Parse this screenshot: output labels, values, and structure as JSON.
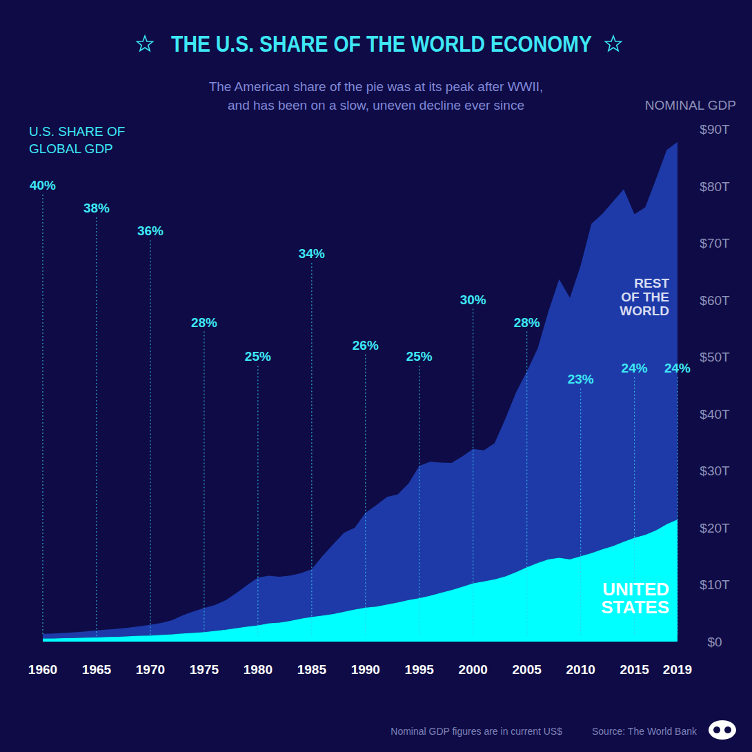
{
  "chart_data": {
    "type": "area",
    "title": "THE U.S. SHARE OF THE WORLD ECONOMY",
    "subtitle": [
      "The American share of the pie was at its peak after WWII,",
      "and has been on a slow, uneven decline ever since"
    ],
    "y_label": "NOMINAL GDP",
    "share_label": [
      "U.S. SHARE OF",
      "GLOBAL GDP"
    ],
    "note": "Nominal GDP figures are in current US$",
    "source": "Source: The World Bank",
    "stacked": true,
    "grid": false,
    "x": [
      1960,
      1961,
      1962,
      1963,
      1964,
      1965,
      1966,
      1967,
      1968,
      1969,
      1970,
      1971,
      1972,
      1973,
      1974,
      1975,
      1976,
      1977,
      1978,
      1979,
      1980,
      1981,
      1982,
      1983,
      1984,
      1985,
      1986,
      1987,
      1988,
      1989,
      1990,
      1991,
      1992,
      1993,
      1994,
      1995,
      1996,
      1997,
      1998,
      1999,
      2000,
      2001,
      2002,
      2003,
      2004,
      2005,
      2006,
      2007,
      2008,
      2009,
      2010,
      2011,
      2012,
      2013,
      2014,
      2015,
      2016,
      2017,
      2018,
      2019
    ],
    "xlim": [
      1960,
      2019
    ],
    "xticks": [
      1960,
      1965,
      1970,
      1975,
      1980,
      1985,
      1990,
      1995,
      2000,
      2005,
      2010,
      2015,
      2019
    ],
    "ylim": [
      0,
      90
    ],
    "yticks": [
      {
        "value": 0,
        "label": "$0"
      },
      {
        "value": 10,
        "label": "$10T"
      },
      {
        "value": 20,
        "label": "$20T"
      },
      {
        "value": 30,
        "label": "$30T"
      },
      {
        "value": 40,
        "label": "$40T"
      },
      {
        "value": 50,
        "label": "$50T"
      },
      {
        "value": 60,
        "label": "$60T"
      },
      {
        "value": 70,
        "label": "$70T"
      },
      {
        "value": 80,
        "label": "$80T"
      },
      {
        "value": 90,
        "label": "$90T"
      }
    ],
    "series": [
      {
        "name": "UNITED STATES",
        "color": "#00ffff",
        "values": [
          0.54,
          0.56,
          0.61,
          0.64,
          0.69,
          0.74,
          0.82,
          0.86,
          0.94,
          1.02,
          1.07,
          1.17,
          1.28,
          1.43,
          1.55,
          1.68,
          1.87,
          2.08,
          2.35,
          2.63,
          2.86,
          3.21,
          3.34,
          3.63,
          4.04,
          4.34,
          4.58,
          4.86,
          5.24,
          5.64,
          5.96,
          6.16,
          6.52,
          6.86,
          7.29,
          7.64,
          8.07,
          8.58,
          9.06,
          9.63,
          10.25,
          10.58,
          10.94,
          11.46,
          12.21,
          13.04,
          13.82,
          14.45,
          14.71,
          14.45,
          14.99,
          15.54,
          16.2,
          16.79,
          17.53,
          18.24,
          18.75,
          19.54,
          20.61,
          21.43
        ]
      },
      {
        "name": "REST OF THE WORLD",
        "color": "#1d3aa8",
        "values": [
          0.83,
          0.86,
          0.92,
          1.0,
          1.11,
          1.22,
          1.31,
          1.4,
          1.5,
          1.67,
          1.89,
          2.1,
          2.49,
          3.16,
          3.75,
          4.22,
          4.55,
          5.18,
          6.19,
          7.3,
          8.37,
          8.36,
          8.05,
          7.98,
          7.98,
          8.37,
          10.43,
          12.24,
          13.87,
          14.36,
          16.67,
          17.8,
          18.88,
          19.0,
          20.49,
          23.23,
          23.5,
          22.86,
          22.31,
          22.89,
          23.58,
          23.0,
          23.92,
          27.67,
          31.59,
          34.42,
          37.63,
          43.52,
          48.9,
          45.89,
          51.06,
          57.83,
          58.87,
          60.45,
          61.91,
          56.81,
          57.49,
          61.64,
          65.72,
          66.3
        ]
      }
    ],
    "annotations": [
      {
        "x": 1960,
        "value": 40,
        "label": "40%"
      },
      {
        "x": 1965,
        "value": 38,
        "label": "38%"
      },
      {
        "x": 1970,
        "value": 36,
        "label": "36%"
      },
      {
        "x": 1975,
        "value": 28,
        "label": "28%"
      },
      {
        "x": 1980,
        "value": 25,
        "label": "25%"
      },
      {
        "x": 1985,
        "value": 34,
        "label": "34%"
      },
      {
        "x": 1990,
        "value": 26,
        "label": "26%"
      },
      {
        "x": 1995,
        "value": 25,
        "label": "25%"
      },
      {
        "x": 2000,
        "value": 30,
        "label": "30%"
      },
      {
        "x": 2005,
        "value": 28,
        "label": "28%"
      },
      {
        "x": 2010,
        "value": 23,
        "label": "23%"
      },
      {
        "x": 2015,
        "value": 24,
        "label": "24%"
      },
      {
        "x": 2019,
        "value": 24,
        "label": "24%"
      }
    ]
  }
}
